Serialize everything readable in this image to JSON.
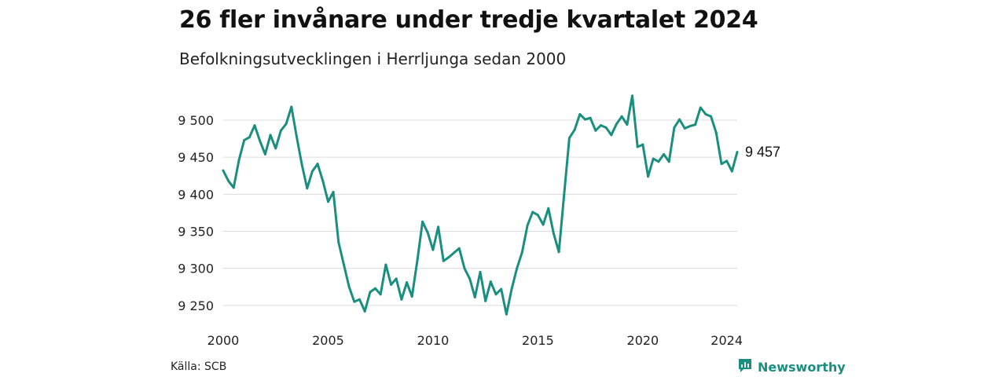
{
  "title": "26 fler invånare under tredje kvartalet 2024",
  "subtitle": "Befolkningsutvecklingen i Herrljunga sedan 2000",
  "source": "Källa: SCB",
  "brand": {
    "name": "Newsworthy",
    "icon": "newsworthy-logo-icon",
    "color": "#1b8f7f"
  },
  "chart_data": {
    "type": "line",
    "title": "26 fler invånare under tredje kvartalet 2024",
    "subtitle": "Befolkningsutvecklingen i Herrljunga sedan 2000",
    "xlabel": "",
    "ylabel": "",
    "xlim": [
      2000,
      2024.5
    ],
    "ylim": [
      9235,
      9535
    ],
    "x_ticks": [
      2000,
      2005,
      2010,
      2015,
      2020,
      2024
    ],
    "y_ticks": [
      9250,
      9300,
      9350,
      9400,
      9450,
      9500
    ],
    "y_tick_labels": [
      "9 250",
      "9 300",
      "9 350",
      "9 400",
      "9 450",
      "9 500"
    ],
    "grid": "horizontal",
    "line_color": "#1b8f7f",
    "end_label": "9 457",
    "series": [
      {
        "x": [
          2000.0,
          2000.25,
          2000.5,
          2000.75,
          2001.0,
          2001.25,
          2001.5,
          2001.75,
          2002.0,
          2002.25,
          2002.5,
          2002.75,
          2003.0,
          2003.25,
          2003.5,
          2003.75,
          2004.0,
          2004.25,
          2004.5,
          2004.75,
          2005.0,
          2005.25,
          2005.5,
          2005.75,
          2006.0,
          2006.25,
          2006.5,
          2006.75,
          2007.0,
          2007.25,
          2007.5,
          2007.75,
          2008.0,
          2008.25,
          2008.5,
          2008.75,
          2009.0,
          2009.25,
          2009.5,
          2009.75,
          2010.0,
          2010.25,
          2010.5,
          2010.75,
          2011.0,
          2011.25,
          2011.5,
          2011.75,
          2012.0,
          2012.25,
          2012.5,
          2012.75,
          2013.0,
          2013.25,
          2013.5,
          2013.75,
          2014.0,
          2014.25,
          2014.5,
          2014.75,
          2015.0,
          2015.25,
          2015.5,
          2015.75,
          2016.0,
          2016.25,
          2016.5,
          2016.75,
          2017.0,
          2017.25,
          2017.5,
          2017.75,
          2018.0,
          2018.25,
          2018.5,
          2018.75,
          2019.0,
          2019.25,
          2019.5,
          2019.75,
          2020.0,
          2020.25,
          2020.5,
          2020.75,
          2021.0,
          2021.25,
          2021.5,
          2021.75,
          2022.0,
          2022.25,
          2022.5,
          2022.75,
          2023.0,
          2023.25,
          2023.5,
          2023.75,
          2024.0,
          2024.25,
          2024.5
        ],
        "y": [
          9432,
          9418,
          9409,
          9446,
          9473,
          9477,
          9493,
          9472,
          9454,
          9480,
          9462,
          9486,
          9495,
          9518,
          9478,
          9440,
          9408,
          9431,
          9441,
          9418,
          9390,
          9403,
          9335,
          9305,
          9275,
          9255,
          9258,
          9242,
          9268,
          9273,
          9265,
          9305,
          9278,
          9286,
          9258,
          9281,
          9262,
          9310,
          9363,
          9348,
          9325,
          9356,
          9310,
          9315,
          9321,
          9327,
          9300,
          9286,
          9261,
          9295,
          9256,
          9282,
          9265,
          9272,
          9238,
          9272,
          9300,
          9322,
          9358,
          9376,
          9372,
          9359,
          9381,
          9347,
          9322,
          9400,
          9476,
          9487,
          9508,
          9501,
          9503,
          9486,
          9493,
          9490,
          9480,
          9495,
          9505,
          9494,
          9533,
          9464,
          9467,
          9424,
          9448,
          9444,
          9454,
          9444,
          9490,
          9501,
          9489,
          9492,
          9494,
          9517,
          9508,
          9505,
          9483,
          9441,
          9445,
          9431,
          9457
        ]
      }
    ]
  }
}
